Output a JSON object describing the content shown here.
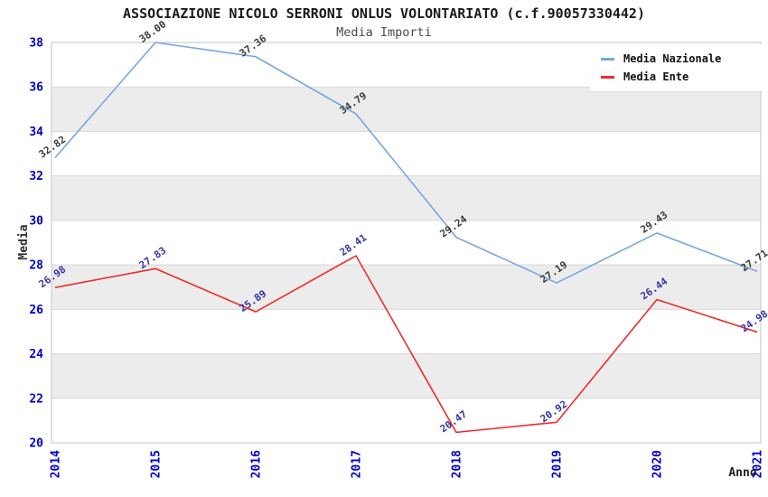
{
  "header": {
    "title": "ASSOCIAZIONE NICOLO SERRONI ONLUS VOLONTARIATO (c.f.90057330442)",
    "subtitle": "Media Importi"
  },
  "chart_data": {
    "type": "line",
    "title": "ASSOCIAZIONE NICOLO SERRONI ONLUS VOLONTARIATO (c.f.90057330442)",
    "subtitle": "Media Importi",
    "xlabel": "Anno",
    "ylabel": "Media",
    "categories": [
      "2014",
      "2015",
      "2016",
      "2017",
      "2018",
      "2019",
      "2020",
      "2021"
    ],
    "series": [
      {
        "name": "Media Nazionale",
        "color": "#74a7e0",
        "label_color": "#3a3a3a",
        "values": [
          32.82,
          38.0,
          37.36,
          34.79,
          29.24,
          27.19,
          29.43,
          27.71
        ]
      },
      {
        "name": "Media Ente",
        "color": "#ee2b2b",
        "label_color": "#3434a6",
        "values": [
          26.98,
          27.83,
          25.89,
          28.41,
          20.47,
          20.92,
          26.44,
          24.98
        ]
      }
    ],
    "ylim": [
      20,
      38
    ],
    "ytick_step": 2,
    "grid": "horizontal-bands",
    "legend_position": "top-right",
    "axis_tick_color": "#0000cc",
    "band_color": "#ececec",
    "gridline_color": "#d9d9d9",
    "border_color": "#c4c4c4",
    "axis_title_color": "#333333"
  }
}
